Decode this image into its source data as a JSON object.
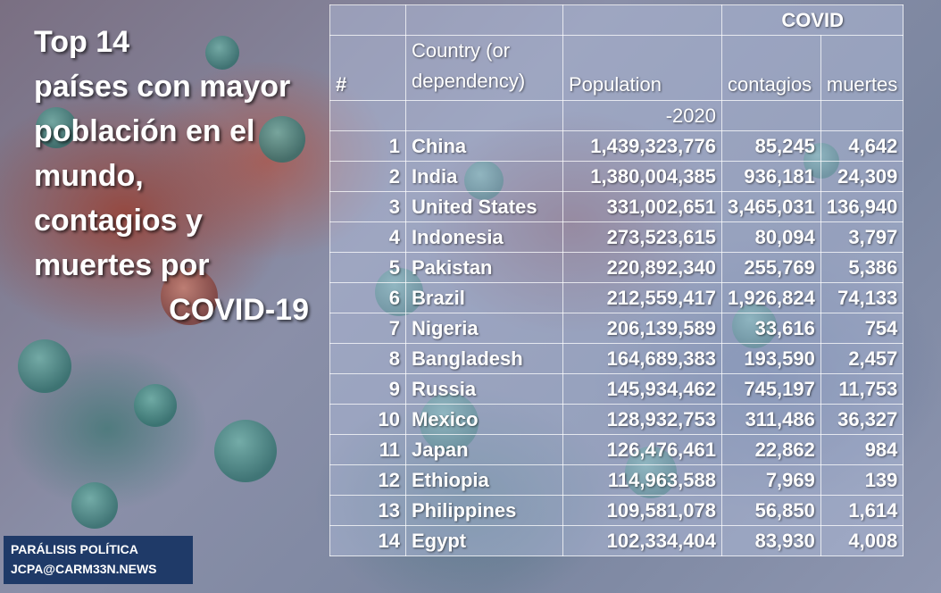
{
  "title_lines": [
    "Top 14",
    "países con mayor",
    "población en el",
    "mundo,",
    "contagios y",
    "muertes por",
    "COVID-19"
  ],
  "credit": {
    "line1": "PARÁLISIS POLÍTICA",
    "line2": "JCPA@CARM33N.NEWS"
  },
  "table": {
    "group_header": "COVID",
    "col_rank": "#",
    "col_country": "Country (or dependency)",
    "col_population": "Population",
    "col_population_year": "-2020",
    "col_contagios": "contagios",
    "col_muertes": "muertes",
    "rows": [
      {
        "rank": "1",
        "country": "China",
        "population": "1,439,323,776",
        "contagios": "85,245",
        "muertes": "4,642"
      },
      {
        "rank": "2",
        "country": "India",
        "population": "1,380,004,385",
        "contagios": "936,181",
        "muertes": "24,309"
      },
      {
        "rank": "3",
        "country": "United States",
        "population": "331,002,651",
        "contagios": "3,465,031",
        "muertes": "136,940"
      },
      {
        "rank": "4",
        "country": "Indonesia",
        "population": "273,523,615",
        "contagios": "80,094",
        "muertes": "3,797"
      },
      {
        "rank": "5",
        "country": "Pakistan",
        "population": "220,892,340",
        "contagios": "255,769",
        "muertes": "5,386"
      },
      {
        "rank": "6",
        "country": "Brazil",
        "population": "212,559,417",
        "contagios": "1,926,824",
        "muertes": "74,133"
      },
      {
        "rank": "7",
        "country": "Nigeria",
        "population": "206,139,589",
        "contagios": "33,616",
        "muertes": "754"
      },
      {
        "rank": "8",
        "country": "Bangladesh",
        "population": "164,689,383",
        "contagios": "193,590",
        "muertes": "2,457"
      },
      {
        "rank": "9",
        "country": "Russia",
        "population": "145,934,462",
        "contagios": "745,197",
        "muertes": "11,753"
      },
      {
        "rank": "10",
        "country": "Mexico",
        "population": "128,932,753",
        "contagios": "311,486",
        "muertes": "36,327"
      },
      {
        "rank": "11",
        "country": "Japan",
        "population": "126,476,461",
        "contagios": "22,862",
        "muertes": "984"
      },
      {
        "rank": "12",
        "country": "Ethiopia",
        "population": "114,963,588",
        "contagios": "7,969",
        "muertes": "139"
      },
      {
        "rank": "13",
        "country": "Philippines",
        "population": "109,581,078",
        "contagios": "56,850",
        "muertes": "1,614"
      },
      {
        "rank": "14",
        "country": "Egypt",
        "population": "102,334,404",
        "contagios": "83,930",
        "muertes": "4,008"
      }
    ]
  }
}
